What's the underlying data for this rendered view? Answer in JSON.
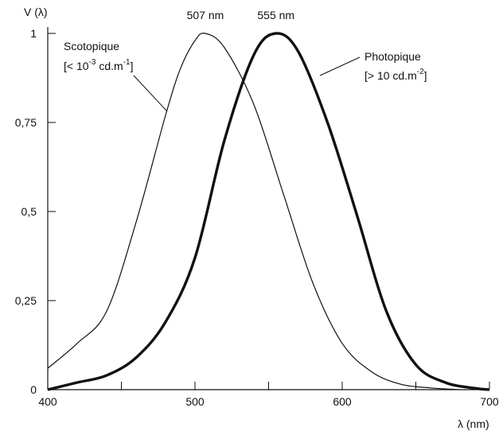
{
  "chart_data": {
    "type": "line",
    "ylabel": "V (λ)",
    "xlabel": "λ (nm)",
    "xlim": [
      400,
      700
    ],
    "ylim": [
      0,
      1
    ],
    "x_ticks": [
      400,
      500,
      600,
      700
    ],
    "x_minor_ticks": [
      450,
      550,
      650
    ],
    "x_tick_labels": [
      "400",
      "500",
      "600",
      "700"
    ],
    "y_ticks": [
      0,
      0.25,
      0.5,
      0.75,
      1
    ],
    "y_tick_labels": [
      "0",
      "0,25",
      "0,5",
      "0,75",
      "1"
    ],
    "grid": false,
    "peak_labels": [
      {
        "text": "507 nm",
        "x": 507
      },
      {
        "text": "555 nm",
        "x": 555
      }
    ],
    "series": [
      {
        "name": "Scotopique",
        "condition_prefix": "[< 10",
        "condition_sup1": "-3",
        "condition_mid": " cd.m",
        "condition_sup2": "-1",
        "condition_suffix": "]",
        "x": [
          400,
          420,
          440,
          460,
          480,
          490,
          500,
          507,
          520,
          540,
          560,
          580,
          600,
          620,
          640,
          660,
          680
        ],
        "values": [
          0.06,
          0.13,
          0.22,
          0.47,
          0.77,
          0.9,
          0.98,
          1.0,
          0.96,
          0.8,
          0.55,
          0.3,
          0.13,
          0.05,
          0.015,
          0.005,
          0.0
        ]
      },
      {
        "name": "Photopique",
        "condition_prefix": "[> 10 cd.m",
        "condition_sup1": "-2",
        "condition_suffix": "]",
        "x": [
          400,
          420,
          440,
          460,
          480,
          500,
          520,
          540,
          555,
          570,
          590,
          610,
          630,
          650,
          670,
          690,
          700
        ],
        "values": [
          0.0,
          0.02,
          0.04,
          0.09,
          0.19,
          0.37,
          0.7,
          0.94,
          1.0,
          0.95,
          0.75,
          0.49,
          0.22,
          0.07,
          0.02,
          0.004,
          0.0
        ]
      }
    ]
  }
}
